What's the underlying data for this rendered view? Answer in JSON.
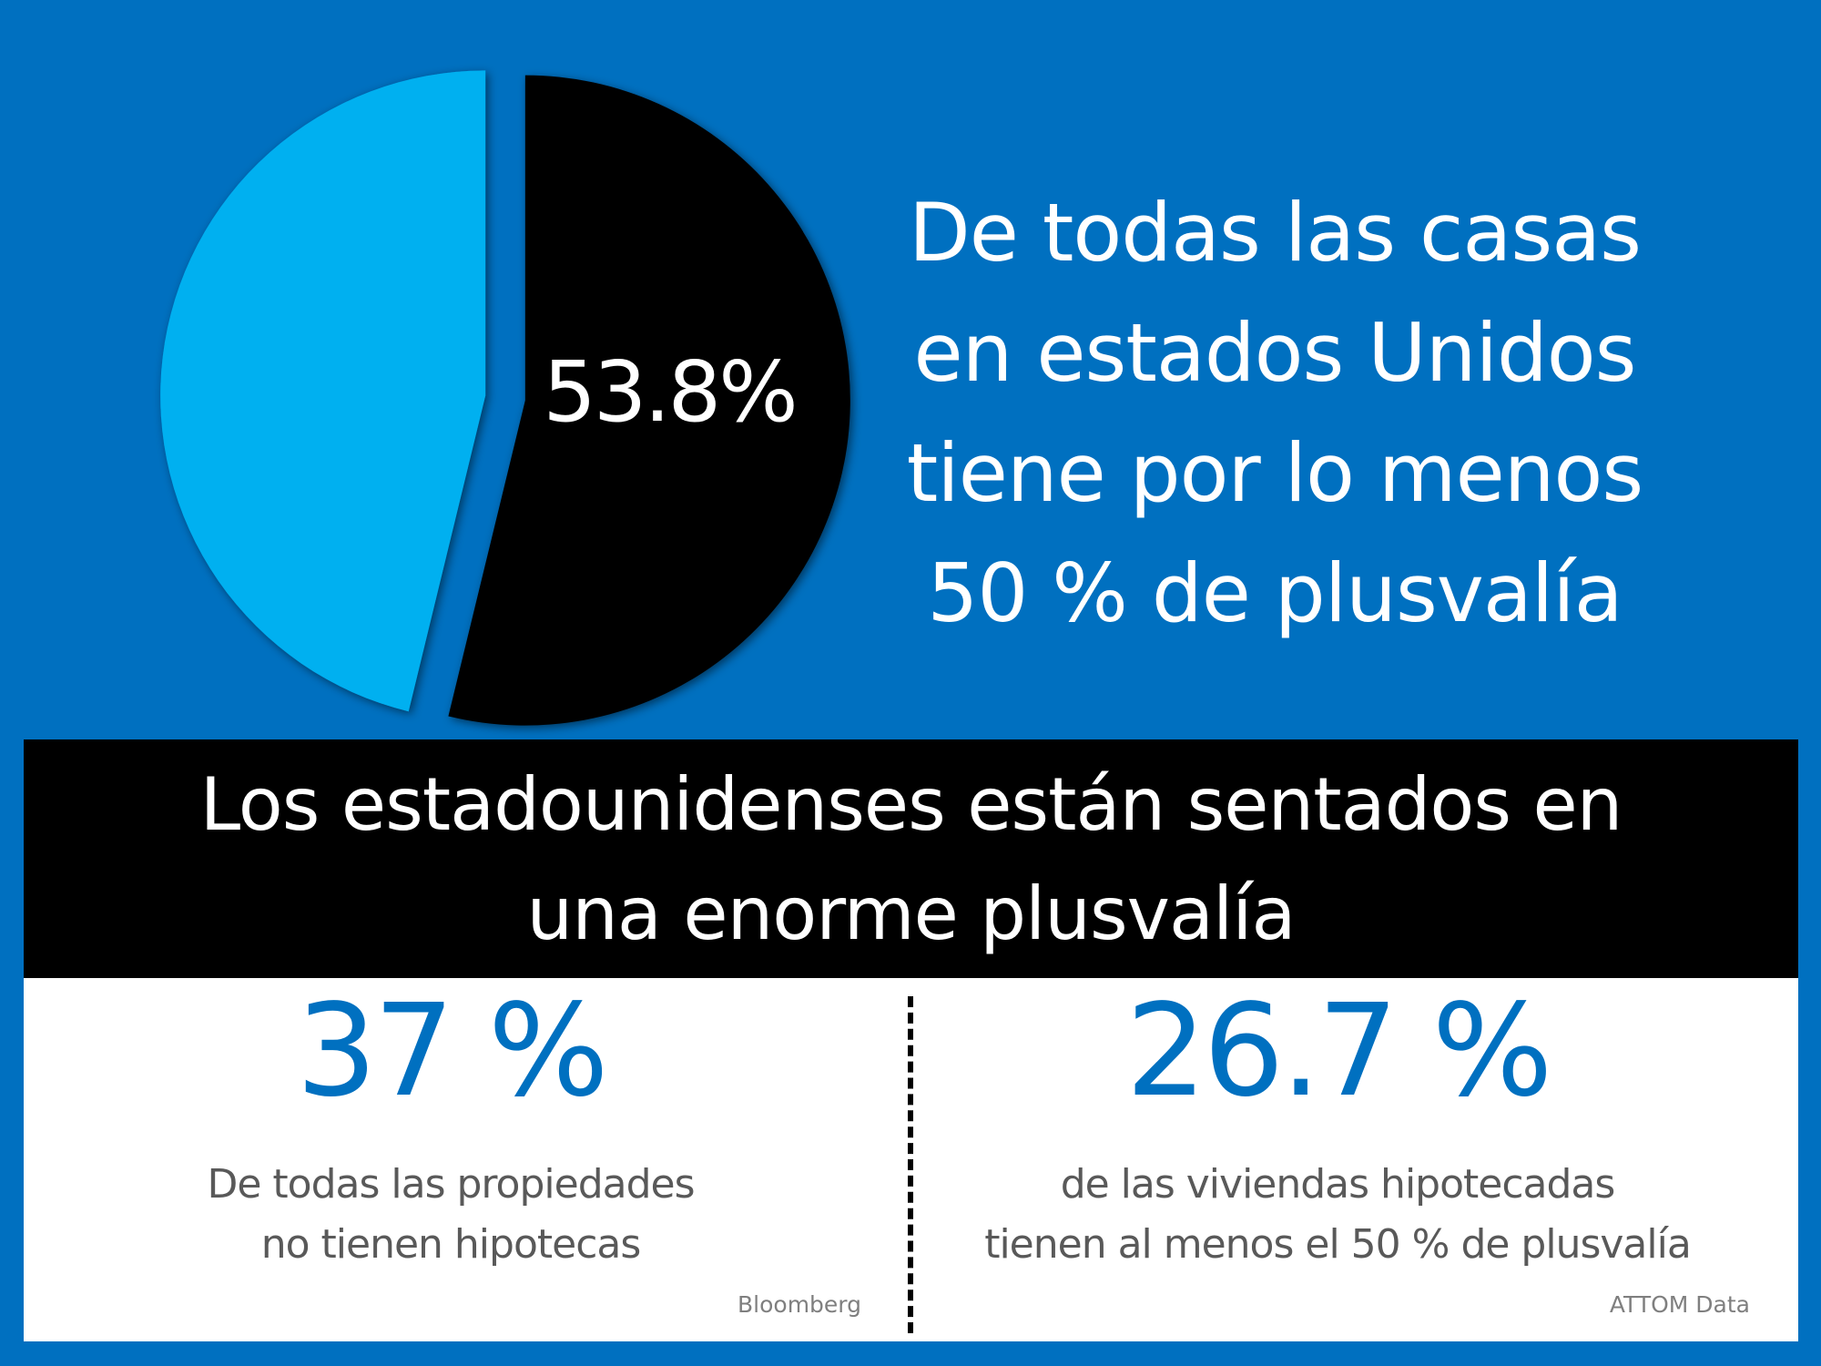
{
  "chart_data": {
    "type": "pie",
    "slices": [
      {
        "label": "53.8%",
        "value": 53.8,
        "color": "#000000"
      },
      {
        "value": 46.2,
        "color": "#00B0F0"
      }
    ],
    "start": "top",
    "direction": "clockwise",
    "background": "#0070C0"
  },
  "headline": [
    "De todas las casas",
    "en estados Unidos",
    "tiene por lo menos",
    "50 % de plusvalía"
  ],
  "band": [
    "Los estadounidenses están sentados en",
    "una enorme plusvalía"
  ],
  "stats": [
    {
      "value": "37 %",
      "desc": [
        "De todas las propiedades",
        "no tienen hipotecas"
      ],
      "source": "Bloomberg"
    },
    {
      "value": "26.7 %",
      "desc": [
        "de las viviendas hipotecadas",
        "tienen al menos el 50 % de plusvalía"
      ],
      "source": "ATTOM Data"
    }
  ],
  "colors": {
    "accent": "#0070C0",
    "light": "#00B0F0",
    "text_gray": "#595959"
  }
}
